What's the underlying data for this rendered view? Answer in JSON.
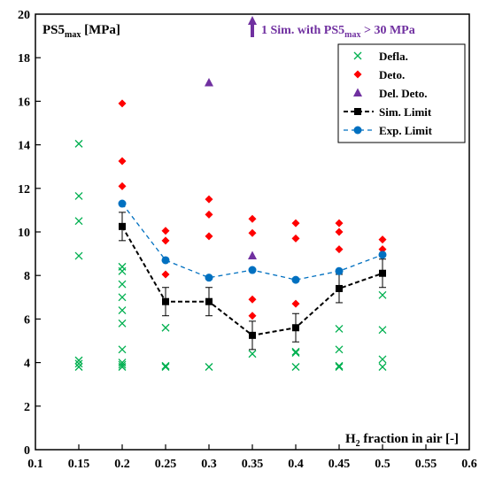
{
  "chart_data": {
    "type": "scatter",
    "ylabel_main": "PS5",
    "ylabel_sub": "max",
    "ylabel_unit": " [MPa]",
    "xlabel_pre": "H",
    "xlabel_sub": "2",
    "xlabel_post": " fraction in air [-]",
    "xlim": [
      0.1,
      0.6
    ],
    "ylim": [
      0,
      20
    ],
    "x_ticks": [
      "0.1",
      "0.15",
      "0.2",
      "0.25",
      "0.3",
      "0.35",
      "0.4",
      "0.45",
      "0.5",
      "0.55",
      "0.6"
    ],
    "y_ticks": [
      "0",
      "2",
      "4",
      "6",
      "8",
      "10",
      "12",
      "14",
      "16",
      "18",
      "20"
    ],
    "y_top_label": "20",
    "annotation": {
      "pre": "1 Sim. with PS5",
      "sub": "max",
      "post": " > 30 MPa",
      "x": 0.35,
      "color": "#7030A0"
    },
    "legend_position": "top-right",
    "grid": false,
    "series": [
      {
        "name": "Defla.",
        "marker": "x",
        "color": "#00B050",
        "points": [
          [
            0.15,
            14.05
          ],
          [
            0.15,
            11.65
          ],
          [
            0.15,
            10.5
          ],
          [
            0.15,
            8.9
          ],
          [
            0.15,
            4.1
          ],
          [
            0.15,
            3.95
          ],
          [
            0.15,
            3.8
          ],
          [
            0.2,
            8.4
          ],
          [
            0.2,
            8.2
          ],
          [
            0.2,
            7.6
          ],
          [
            0.2,
            7.0
          ],
          [
            0.2,
            6.4
          ],
          [
            0.2,
            5.8
          ],
          [
            0.2,
            4.6
          ],
          [
            0.2,
            4.0
          ],
          [
            0.2,
            3.9
          ],
          [
            0.2,
            3.8
          ],
          [
            0.25,
            5.6
          ],
          [
            0.25,
            3.85
          ],
          [
            0.25,
            3.8
          ],
          [
            0.3,
            3.8
          ],
          [
            0.35,
            4.4
          ],
          [
            0.4,
            4.5
          ],
          [
            0.4,
            4.45
          ],
          [
            0.4,
            3.8
          ],
          [
            0.45,
            5.55
          ],
          [
            0.45,
            4.6
          ],
          [
            0.45,
            3.85
          ],
          [
            0.45,
            3.8
          ],
          [
            0.5,
            7.1
          ],
          [
            0.5,
            5.5
          ],
          [
            0.5,
            4.15
          ],
          [
            0.5,
            3.8
          ]
        ]
      },
      {
        "name": "Deto.",
        "marker": "diamond",
        "color": "#FF0000",
        "points": [
          [
            0.2,
            15.9
          ],
          [
            0.2,
            13.25
          ],
          [
            0.2,
            12.1
          ],
          [
            0.25,
            10.05
          ],
          [
            0.25,
            9.6
          ],
          [
            0.25,
            8.05
          ],
          [
            0.3,
            11.5
          ],
          [
            0.3,
            10.8
          ],
          [
            0.3,
            9.8
          ],
          [
            0.35,
            10.6
          ],
          [
            0.35,
            9.95
          ],
          [
            0.35,
            6.9
          ],
          [
            0.35,
            6.15
          ],
          [
            0.4,
            10.4
          ],
          [
            0.4,
            9.7
          ],
          [
            0.4,
            6.7
          ],
          [
            0.45,
            10.4
          ],
          [
            0.45,
            10.0
          ],
          [
            0.45,
            9.2
          ],
          [
            0.5,
            9.65
          ],
          [
            0.5,
            9.2
          ]
        ]
      },
      {
        "name": "Del. Deto.",
        "marker": "triangle",
        "color": "#7030A0",
        "points": [
          [
            0.3,
            16.85
          ],
          [
            0.35,
            8.9
          ]
        ]
      },
      {
        "name": "Sim. Limit",
        "marker": "square",
        "color": "#000000",
        "line": "dashed",
        "points": [
          [
            0.2,
            10.25
          ],
          [
            0.25,
            6.8
          ],
          [
            0.3,
            6.8
          ],
          [
            0.35,
            5.25
          ],
          [
            0.4,
            5.6
          ],
          [
            0.45,
            7.4
          ],
          [
            0.5,
            8.1
          ]
        ],
        "error": [
          0.65,
          0.65,
          0.65,
          0.65,
          0.65,
          0.65,
          0.65
        ]
      },
      {
        "name": "Exp. Limit",
        "marker": "circle",
        "color": "#0070C0",
        "line": "dashed",
        "points": [
          [
            0.2,
            11.3
          ],
          [
            0.25,
            8.7
          ],
          [
            0.3,
            7.9
          ],
          [
            0.35,
            8.25
          ],
          [
            0.4,
            7.8
          ],
          [
            0.45,
            8.2
          ],
          [
            0.5,
            8.95
          ]
        ]
      }
    ]
  }
}
